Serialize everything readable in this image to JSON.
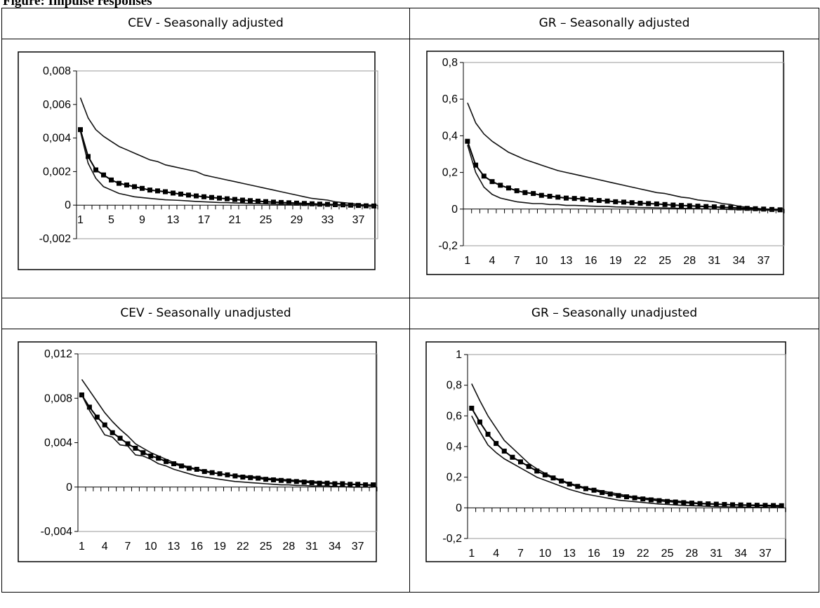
{
  "page": {
    "figure_title": "Figure: Impulse responses"
  },
  "panels": [
    {
      "title": "CEV - Seasonally adjusted"
    },
    {
      "title": "GR – Seasonally adjusted"
    },
    {
      "title": "CEV - Seasonally unadjusted"
    },
    {
      "title": "GR – Seasonally unadjusted"
    }
  ],
  "chart_data": [
    {
      "type": "line",
      "title": "CEV - Seasonally adjusted",
      "xlabel": "",
      "ylabel": "",
      "ylim": [
        -0.002,
        0.008
      ],
      "yticks": [
        -0.002,
        0,
        0.002,
        0.004,
        0.006,
        0.008
      ],
      "ytick_labels": [
        "-0,002",
        "0",
        "0,002",
        "0,004",
        "0,006",
        "0,008"
      ],
      "xtick_labels": [
        "1",
        "5",
        "9",
        "13",
        "17",
        "21",
        "25",
        "29",
        "33",
        "37"
      ],
      "x": [
        1,
        2,
        3,
        4,
        5,
        6,
        7,
        8,
        9,
        10,
        11,
        12,
        13,
        14,
        15,
        16,
        17,
        18,
        19,
        20,
        21,
        22,
        23,
        24,
        25,
        26,
        27,
        28,
        29,
        30,
        31,
        32,
        33,
        34,
        35,
        36,
        37,
        38,
        39
      ],
      "grid": false,
      "legend": "none",
      "series": [
        {
          "role": "upper",
          "marker": "none",
          "values": [
            0.0064,
            0.0052,
            0.0045,
            0.0041,
            0.0038,
            0.0035,
            0.0033,
            0.0031,
            0.0029,
            0.0027,
            0.0026,
            0.0024,
            0.0023,
            0.0022,
            0.0021,
            0.002,
            0.0018,
            0.0017,
            0.0016,
            0.0015,
            0.0014,
            0.0013,
            0.0012,
            0.0011,
            0.001,
            0.0009,
            0.0008,
            0.0007,
            0.0006,
            0.0005,
            0.0004,
            0.00035,
            0.0003,
            0.0002,
            0.00015,
            0.0001,
            5e-05,
            0.0,
            0.0
          ]
        },
        {
          "role": "estimate",
          "marker": "square",
          "values": [
            0.0045,
            0.0029,
            0.0021,
            0.0018,
            0.0015,
            0.0013,
            0.0012,
            0.0011,
            0.001,
            0.0009,
            0.00085,
            0.0008,
            0.00072,
            0.00066,
            0.0006,
            0.00055,
            0.0005,
            0.00046,
            0.00042,
            0.00038,
            0.00034,
            0.0003,
            0.00027,
            0.00024,
            0.00021,
            0.00018,
            0.00016,
            0.00014,
            0.00012,
            0.0001,
            8e-05,
            6e-05,
            5e-05,
            3e-05,
            2e-05,
            0.0,
            -2e-05,
            -4e-05,
            -5e-05
          ]
        },
        {
          "role": "lower",
          "marker": "none",
          "values": [
            0.0044,
            0.0025,
            0.0016,
            0.0011,
            0.0009,
            0.0007,
            0.0006,
            0.0005,
            0.00045,
            0.0004,
            0.00036,
            0.00032,
            0.0003,
            0.00028,
            0.00025,
            0.00022,
            0.0002,
            0.00018,
            0.00016,
            0.00015,
            0.00013,
            0.00012,
            0.0001,
            9e-05,
            8e-05,
            7e-05,
            6e-05,
            5e-05,
            4e-05,
            3e-05,
            2e-05,
            1e-05,
            0.0,
            0.0,
            -1e-05,
            -2e-05,
            -3e-05,
            -4e-05,
            -5e-05
          ]
        }
      ]
    },
    {
      "type": "line",
      "title": "GR – Seasonally adjusted",
      "xlabel": "",
      "ylabel": "",
      "ylim": [
        -0.2,
        0.8
      ],
      "yticks": [
        -0.2,
        0,
        0.2,
        0.4,
        0.6,
        0.8
      ],
      "ytick_labels": [
        "-0,2",
        "0",
        "0,2",
        "0,4",
        "0,6",
        "0,8"
      ],
      "xtick_labels": [
        "1",
        "4",
        "7",
        "10",
        "13",
        "16",
        "19",
        "22",
        "25",
        "28",
        "31",
        "34",
        "37"
      ],
      "x": [
        1,
        2,
        3,
        4,
        5,
        6,
        7,
        8,
        9,
        10,
        11,
        12,
        13,
        14,
        15,
        16,
        17,
        18,
        19,
        20,
        21,
        22,
        23,
        24,
        25,
        26,
        27,
        28,
        29,
        30,
        31,
        32,
        33,
        34,
        35,
        36,
        37,
        38,
        39
      ],
      "grid": false,
      "legend": "none",
      "series": [
        {
          "role": "upper",
          "marker": "none",
          "values": [
            0.58,
            0.47,
            0.41,
            0.37,
            0.34,
            0.31,
            0.29,
            0.27,
            0.255,
            0.24,
            0.225,
            0.21,
            0.2,
            0.19,
            0.18,
            0.17,
            0.16,
            0.15,
            0.14,
            0.13,
            0.12,
            0.11,
            0.1,
            0.09,
            0.085,
            0.075,
            0.065,
            0.06,
            0.05,
            0.045,
            0.04,
            0.03,
            0.025,
            0.015,
            0.01,
            0.005,
            0.0,
            0.0,
            -0.005
          ]
        },
        {
          "role": "estimate",
          "marker": "square",
          "values": [
            0.37,
            0.24,
            0.18,
            0.15,
            0.13,
            0.115,
            0.1,
            0.09,
            0.085,
            0.075,
            0.07,
            0.065,
            0.06,
            0.058,
            0.055,
            0.05,
            0.047,
            0.044,
            0.04,
            0.038,
            0.035,
            0.032,
            0.03,
            0.028,
            0.025,
            0.022,
            0.02,
            0.018,
            0.016,
            0.014,
            0.012,
            0.01,
            0.008,
            0.006,
            0.004,
            0.002,
            0.0,
            -0.002,
            -0.004
          ]
        },
        {
          "role": "lower",
          "marker": "none",
          "values": [
            0.35,
            0.2,
            0.12,
            0.08,
            0.06,
            0.05,
            0.04,
            0.035,
            0.03,
            0.03,
            0.025,
            0.025,
            0.02,
            0.02,
            0.018,
            0.016,
            0.015,
            0.014,
            0.012,
            0.011,
            0.01,
            0.009,
            0.008,
            0.007,
            0.006,
            0.005,
            0.004,
            0.003,
            0.002,
            0.001,
            0.0,
            0.0,
            -0.002,
            -0.003,
            -0.004,
            -0.005,
            -0.006,
            -0.006,
            -0.007
          ]
        }
      ]
    },
    {
      "type": "line",
      "title": "CEV - Seasonally unadjusted",
      "xlabel": "",
      "ylabel": "",
      "ylim": [
        -0.004,
        0.012
      ],
      "yticks": [
        -0.004,
        0,
        0.004,
        0.008,
        0.012
      ],
      "ytick_labels": [
        "-0,004",
        "0",
        "0,004",
        "0,008",
        "0,012"
      ],
      "xtick_labels": [
        "1",
        "4",
        "7",
        "10",
        "13",
        "16",
        "19",
        "22",
        "25",
        "28",
        "31",
        "34",
        "37"
      ],
      "x": [
        1,
        2,
        3,
        4,
        5,
        6,
        7,
        8,
        9,
        10,
        11,
        12,
        13,
        14,
        15,
        16,
        17,
        18,
        19,
        20,
        21,
        22,
        23,
        24,
        25,
        26,
        27,
        28,
        29,
        30,
        31,
        32,
        33,
        34,
        35,
        36,
        37,
        38,
        39
      ],
      "grid": false,
      "legend": "none",
      "series": [
        {
          "role": "upper",
          "marker": "none",
          "values": [
            0.0097,
            0.0087,
            0.0077,
            0.0067,
            0.0059,
            0.0052,
            0.0046,
            0.0039,
            0.0035,
            0.0031,
            0.0028,
            0.0025,
            0.0022,
            0.002,
            0.0018,
            0.0016,
            0.0015,
            0.0013,
            0.0012,
            0.0011,
            0.00105,
            0.001,
            0.00095,
            0.0009,
            0.0008,
            0.00075,
            0.0007,
            0.00065,
            0.0006,
            0.00055,
            0.0005,
            0.00045,
            0.0004,
            0.00035,
            0.0003,
            0.00025,
            0.0002,
            0.0002,
            0.0001
          ]
        },
        {
          "role": "estimate",
          "marker": "square",
          "values": [
            0.0083,
            0.0072,
            0.0063,
            0.0056,
            0.0049,
            0.0044,
            0.0039,
            0.0035,
            0.0031,
            0.0028,
            0.0026,
            0.0023,
            0.0021,
            0.0019,
            0.0017,
            0.0016,
            0.0014,
            0.0013,
            0.0012,
            0.0011,
            0.001,
            0.0009,
            0.00085,
            0.0008,
            0.0007,
            0.00065,
            0.0006,
            0.00055,
            0.0005,
            0.00045,
            0.0004,
            0.00035,
            0.00035,
            0.0003,
            0.0003,
            0.00025,
            0.00025,
            0.0002,
            0.0002
          ]
        },
        {
          "role": "lower",
          "marker": "none",
          "values": [
            0.0083,
            0.0069,
            0.0058,
            0.0047,
            0.0045,
            0.0038,
            0.0037,
            0.0029,
            0.0028,
            0.0025,
            0.0021,
            0.0019,
            0.0016,
            0.0014,
            0.0012,
            0.001,
            0.0009,
            0.0008,
            0.0007,
            0.0006,
            0.0005,
            0.00045,
            0.0004,
            0.00035,
            0.0003,
            0.00025,
            0.0002,
            0.0002,
            0.00015,
            0.00015,
            0.0001,
            0.0001,
            0.0001,
            5e-05,
            5e-05,
            0.0,
            0.0,
            0.0,
            0.0
          ]
        }
      ]
    },
    {
      "type": "line",
      "title": "GR – Seasonally unadjusted",
      "xlabel": "",
      "ylabel": "",
      "ylim": [
        -0.2,
        1.0
      ],
      "yticks": [
        -0.2,
        0,
        0.2,
        0.4,
        0.6,
        0.8,
        1.0
      ],
      "ytick_labels": [
        "-0,2",
        "0",
        "0,2",
        "0,4",
        "0,6",
        "0,8",
        "1"
      ],
      "xtick_labels": [
        "1",
        "4",
        "7",
        "10",
        "13",
        "16",
        "19",
        "22",
        "25",
        "28",
        "31",
        "34",
        "37"
      ],
      "x": [
        1,
        2,
        3,
        4,
        5,
        6,
        7,
        8,
        9,
        10,
        11,
        12,
        13,
        14,
        15,
        16,
        17,
        18,
        19,
        20,
        21,
        22,
        23,
        24,
        25,
        26,
        27,
        28,
        29,
        30,
        31,
        32,
        33,
        34,
        35,
        36,
        37,
        38,
        39
      ],
      "grid": false,
      "legend": "none",
      "series": [
        {
          "role": "upper",
          "marker": "none",
          "values": [
            0.81,
            0.7,
            0.6,
            0.52,
            0.44,
            0.39,
            0.34,
            0.29,
            0.255,
            0.225,
            0.2,
            0.18,
            0.16,
            0.145,
            0.13,
            0.12,
            0.11,
            0.1,
            0.09,
            0.08,
            0.07,
            0.065,
            0.06,
            0.055,
            0.05,
            0.045,
            0.04,
            0.035,
            0.03,
            0.028,
            0.025,
            0.022,
            0.02,
            0.018,
            0.016,
            0.014,
            0.012,
            0.01,
            0.008
          ]
        },
        {
          "role": "estimate",
          "marker": "square",
          "values": [
            0.65,
            0.56,
            0.48,
            0.42,
            0.37,
            0.33,
            0.3,
            0.27,
            0.24,
            0.215,
            0.195,
            0.175,
            0.155,
            0.14,
            0.125,
            0.115,
            0.1,
            0.09,
            0.08,
            0.072,
            0.065,
            0.058,
            0.052,
            0.047,
            0.042,
            0.038,
            0.034,
            0.031,
            0.028,
            0.026,
            0.024,
            0.022,
            0.02,
            0.019,
            0.018,
            0.017,
            0.016,
            0.015,
            0.014
          ]
        },
        {
          "role": "lower",
          "marker": "none",
          "values": [
            0.6,
            0.5,
            0.41,
            0.36,
            0.32,
            0.29,
            0.26,
            0.23,
            0.2,
            0.18,
            0.16,
            0.14,
            0.12,
            0.105,
            0.09,
            0.08,
            0.07,
            0.06,
            0.05,
            0.045,
            0.04,
            0.035,
            0.03,
            0.025,
            0.022,
            0.019,
            0.016,
            0.014,
            0.012,
            0.01,
            0.008,
            0.007,
            0.006,
            0.005,
            0.004,
            0.003,
            0.002,
            0.0015,
            0.001
          ]
        }
      ]
    }
  ]
}
